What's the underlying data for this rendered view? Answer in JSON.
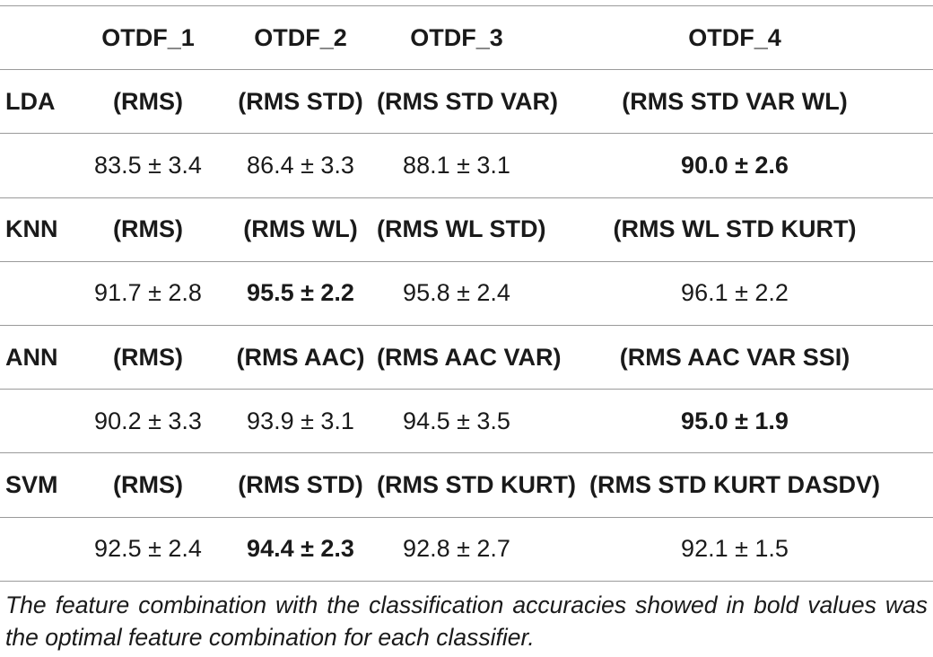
{
  "table": {
    "columns": [
      "",
      "OTDF_1",
      "OTDF_2",
      "OTDF_3",
      "OTDF_4"
    ],
    "groups": [
      {
        "classifier": "LDA",
        "combos": [
          "(RMS)",
          "(RMS STD)",
          "(RMS STD VAR)",
          "(RMS STD VAR WL)"
        ],
        "values": [
          "83.5 ± 3.4",
          "86.4 ± 3.3",
          "88.1 ± 3.1",
          "90.0 ± 2.6"
        ],
        "bold_index": 3
      },
      {
        "classifier": "KNN",
        "combos": [
          "(RMS)",
          "(RMS WL)",
          "(RMS WL STD)",
          "(RMS WL STD KURT)"
        ],
        "values": [
          "91.7 ± 2.8",
          "95.5 ± 2.2",
          "95.8 ± 2.4",
          "96.1 ± 2.2"
        ],
        "bold_index": 1
      },
      {
        "classifier": "ANN",
        "combos": [
          "(RMS)",
          "(RMS AAC)",
          "(RMS AAC VAR)",
          "(RMS AAC VAR SSI)"
        ],
        "values": [
          "90.2 ± 3.3",
          "93.9 ± 3.1",
          "94.5 ± 3.5",
          "95.0 ± 1.9"
        ],
        "bold_index": 3
      },
      {
        "classifier": "SVM",
        "combos": [
          "(RMS)",
          "(RMS STD)",
          "(RMS STD KURT)",
          "(RMS STD KURT DASDV)"
        ],
        "values": [
          "92.5 ± 2.4",
          "94.4 ± 2.3",
          "92.8 ± 2.7",
          "92.1 ± 1.5"
        ],
        "bold_index": 1
      }
    ]
  },
  "footnote": "The feature combination with the classification accuracies showed in bold values was the optimal feature combination for each classifier."
}
